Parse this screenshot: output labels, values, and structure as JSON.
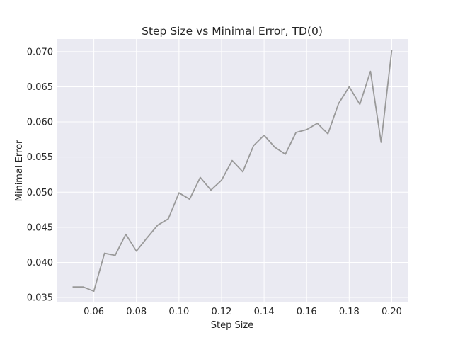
{
  "chart_data": {
    "type": "line",
    "title": "Step Size vs Minimal Error, TD(0)",
    "xlabel": "Step Size",
    "ylabel": "Minimal Error",
    "xlim": [
      0.0425,
      0.2075
    ],
    "ylim": [
      0.0343,
      0.0718
    ],
    "x_ticks": [
      0.06,
      0.08,
      0.1,
      0.12,
      0.14,
      0.16,
      0.18,
      0.2
    ],
    "x_tick_labels": [
      "0.06",
      "0.08",
      "0.10",
      "0.12",
      "0.14",
      "0.16",
      "0.18",
      "0.20"
    ],
    "y_ticks": [
      0.035,
      0.04,
      0.045,
      0.05,
      0.055,
      0.06,
      0.065,
      0.07
    ],
    "y_tick_labels": [
      "0.035",
      "0.040",
      "0.045",
      "0.050",
      "0.055",
      "0.060",
      "0.065",
      "0.070"
    ],
    "grid": true,
    "background_color": "#eaeaf2",
    "grid_color": "#ffffff",
    "series": [
      {
        "color": "#999999",
        "x": [
          0.05,
          0.055,
          0.06,
          0.065,
          0.07,
          0.075,
          0.08,
          0.085,
          0.09,
          0.095,
          0.1,
          0.105,
          0.11,
          0.115,
          0.12,
          0.125,
          0.13,
          0.135,
          0.14,
          0.145,
          0.15,
          0.155,
          0.16,
          0.165,
          0.17,
          0.175,
          0.18,
          0.185,
          0.19,
          0.195,
          0.2
        ],
        "y": [
          0.0365,
          0.0365,
          0.0359,
          0.0413,
          0.041,
          0.044,
          0.0416,
          0.0435,
          0.0453,
          0.0462,
          0.0499,
          0.049,
          0.0521,
          0.0503,
          0.0517,
          0.0545,
          0.0529,
          0.0566,
          0.0581,
          0.0564,
          0.0554,
          0.0585,
          0.0589,
          0.0598,
          0.0583,
          0.0626,
          0.065,
          0.0625,
          0.0672,
          0.0571,
          0.0702
        ]
      }
    ]
  }
}
